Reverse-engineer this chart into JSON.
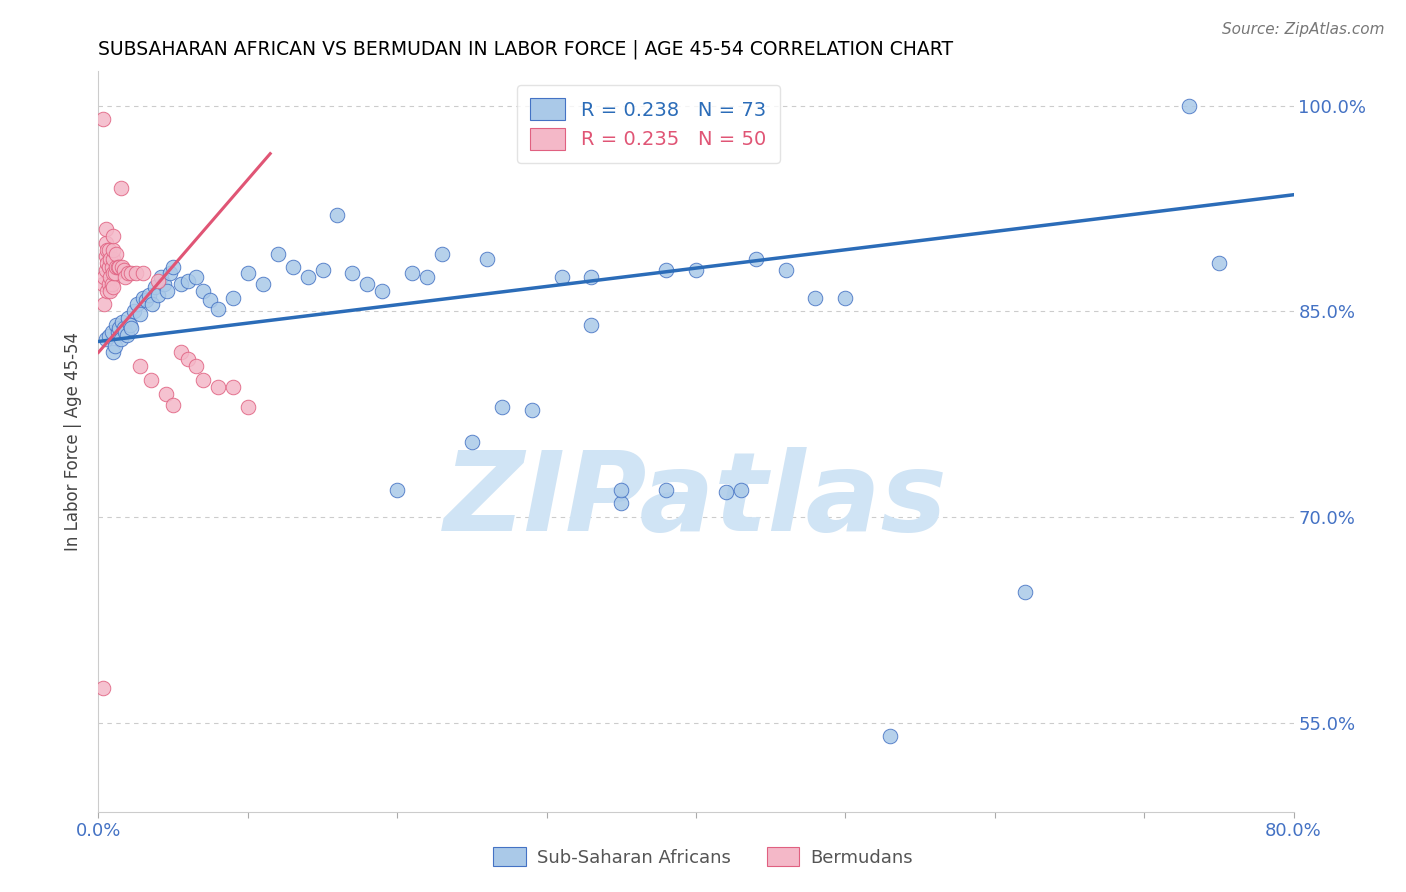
{
  "title": "SUBSAHARAN AFRICAN VS BERMUDAN IN LABOR FORCE | AGE 45-54 CORRELATION CHART",
  "source": "Source: ZipAtlas.com",
  "ylabel": "In Labor Force | Age 45-54",
  "xmin": 0.0,
  "xmax": 0.8,
  "ymin": 0.485,
  "ymax": 1.025,
  "yticks": [
    0.55,
    0.7,
    0.85,
    1.0
  ],
  "ytick_labels": [
    "55.0%",
    "70.0%",
    "85.0%",
    "100.0%"
  ],
  "xticks": [
    0.0,
    0.1,
    0.2,
    0.3,
    0.4,
    0.5,
    0.6,
    0.7,
    0.8
  ],
  "blue_color": "#aac9e8",
  "pink_color": "#f4b8c8",
  "blue_edge_color": "#4472c4",
  "pink_edge_color": "#e06080",
  "blue_line_color": "#2b6cb8",
  "pink_line_color": "#e05575",
  "legend_blue_R": "0.238",
  "legend_blue_N": "73",
  "legend_pink_R": "0.235",
  "legend_pink_N": "50",
  "watermark": "ZIPatlas",
  "watermark_color": "#d0e4f5",
  "blue_label": "Sub-Saharan Africans",
  "pink_label": "Bermudans",
  "blue_scatter_x": [
    0.005,
    0.007,
    0.009,
    0.01,
    0.011,
    0.012,
    0.013,
    0.014,
    0.015,
    0.016,
    0.017,
    0.018,
    0.019,
    0.02,
    0.021,
    0.022,
    0.024,
    0.026,
    0.028,
    0.03,
    0.032,
    0.034,
    0.036,
    0.038,
    0.04,
    0.042,
    0.044,
    0.046,
    0.048,
    0.05,
    0.055,
    0.06,
    0.065,
    0.07,
    0.075,
    0.08,
    0.09,
    0.1,
    0.11,
    0.12,
    0.13,
    0.14,
    0.15,
    0.16,
    0.17,
    0.18,
    0.19,
    0.2,
    0.21,
    0.22,
    0.23,
    0.25,
    0.26,
    0.27,
    0.29,
    0.31,
    0.33,
    0.35,
    0.38,
    0.4,
    0.42,
    0.44,
    0.46,
    0.48,
    0.33,
    0.35,
    0.38,
    0.43,
    0.5,
    0.53,
    0.62,
    0.73,
    0.75
  ],
  "blue_scatter_y": [
    0.83,
    0.832,
    0.835,
    0.82,
    0.825,
    0.84,
    0.835,
    0.838,
    0.83,
    0.842,
    0.838,
    0.835,
    0.833,
    0.845,
    0.84,
    0.838,
    0.85,
    0.855,
    0.848,
    0.86,
    0.858,
    0.862,
    0.855,
    0.868,
    0.862,
    0.875,
    0.87,
    0.865,
    0.878,
    0.882,
    0.87,
    0.872,
    0.875,
    0.865,
    0.858,
    0.852,
    0.86,
    0.878,
    0.87,
    0.892,
    0.882,
    0.875,
    0.88,
    0.92,
    0.878,
    0.87,
    0.865,
    0.72,
    0.878,
    0.875,
    0.892,
    0.755,
    0.888,
    0.78,
    0.778,
    0.875,
    0.84,
    0.71,
    0.72,
    0.88,
    0.718,
    0.888,
    0.88,
    0.86,
    0.875,
    0.72,
    0.88,
    0.72,
    0.86,
    0.54,
    0.645,
    1.0,
    0.885
  ],
  "pink_scatter_x": [
    0.003,
    0.004,
    0.004,
    0.005,
    0.005,
    0.005,
    0.005,
    0.006,
    0.006,
    0.006,
    0.007,
    0.007,
    0.007,
    0.008,
    0.008,
    0.008,
    0.009,
    0.009,
    0.01,
    0.01,
    0.01,
    0.01,
    0.01,
    0.011,
    0.012,
    0.012,
    0.013,
    0.014,
    0.015,
    0.016,
    0.017,
    0.018,
    0.02,
    0.022,
    0.025,
    0.028,
    0.03,
    0.035,
    0.04,
    0.045,
    0.05,
    0.055,
    0.06,
    0.065,
    0.07,
    0.08,
    0.09,
    0.1,
    0.003,
    0.003
  ],
  "pink_scatter_y": [
    0.87,
    0.855,
    0.875,
    0.88,
    0.89,
    0.9,
    0.91,
    0.865,
    0.885,
    0.895,
    0.87,
    0.882,
    0.895,
    0.865,
    0.875,
    0.888,
    0.87,
    0.882,
    0.868,
    0.878,
    0.888,
    0.895,
    0.905,
    0.878,
    0.882,
    0.892,
    0.882,
    0.882,
    0.94,
    0.882,
    0.88,
    0.875,
    0.878,
    0.878,
    0.878,
    0.81,
    0.878,
    0.8,
    0.872,
    0.79,
    0.782,
    0.82,
    0.815,
    0.81,
    0.8,
    0.795,
    0.795,
    0.78,
    0.99,
    0.575
  ],
  "blue_trend_x": [
    0.0,
    0.8
  ],
  "blue_trend_y": [
    0.828,
    0.935
  ],
  "pink_trend_x": [
    0.0,
    0.115
  ],
  "pink_trend_y": [
    0.82,
    0.965
  ],
  "background_color": "#ffffff",
  "grid_color": "#cccccc",
  "tick_color": "#4472c4",
  "title_color": "#000000"
}
